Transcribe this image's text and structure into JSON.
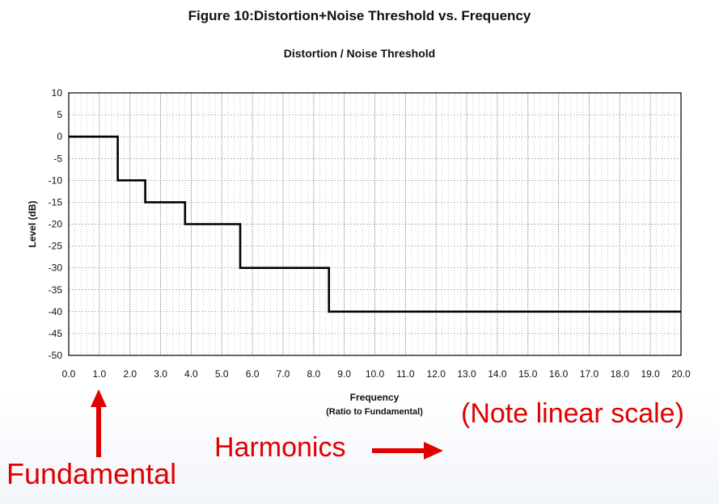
{
  "figure_title": "Figure 10:Distortion+Noise Threshold vs. Frequency",
  "chart_data": {
    "type": "line",
    "title": "Distortion / Noise Threshold",
    "ylabel": "Level (dB)",
    "xlabel": "Frequency",
    "xlabel_sub": "(Ratio to Fundamental)",
    "xlim": [
      0,
      20
    ],
    "ylim": [
      -50,
      10
    ],
    "grid": true,
    "x_ticks": [
      "0.0",
      "1.0",
      "2.0",
      "3.0",
      "4.0",
      "5.0",
      "6.0",
      "7.0",
      "8.0",
      "9.0",
      "10.0",
      "11.0",
      "12.0",
      "13.0",
      "14.0",
      "15.0",
      "16.0",
      "17.0",
      "18.0",
      "19.0",
      "20.0"
    ],
    "y_ticks": [
      "10",
      "5",
      "0",
      "-5",
      "-10",
      "-15",
      "-20",
      "-25",
      "-30",
      "-35",
      "-40",
      "-45",
      "-50"
    ],
    "series": [
      {
        "x": [
          0,
          1.6,
          1.6,
          2.5,
          2.5,
          3.8,
          3.8,
          5.6,
          5.6,
          8.5,
          8.5,
          20
        ],
        "y": [
          0,
          0,
          -10,
          -10,
          -15,
          -15,
          -20,
          -20,
          -30,
          -30,
          -40,
          -40
        ]
      }
    ]
  },
  "annotations": {
    "fundamental": "Fundamental",
    "harmonics": "Harmonics",
    "note": "(Note linear scale)"
  },
  "colors": {
    "annotation": "#e00000",
    "line": "#000000",
    "grid": "#999999"
  }
}
